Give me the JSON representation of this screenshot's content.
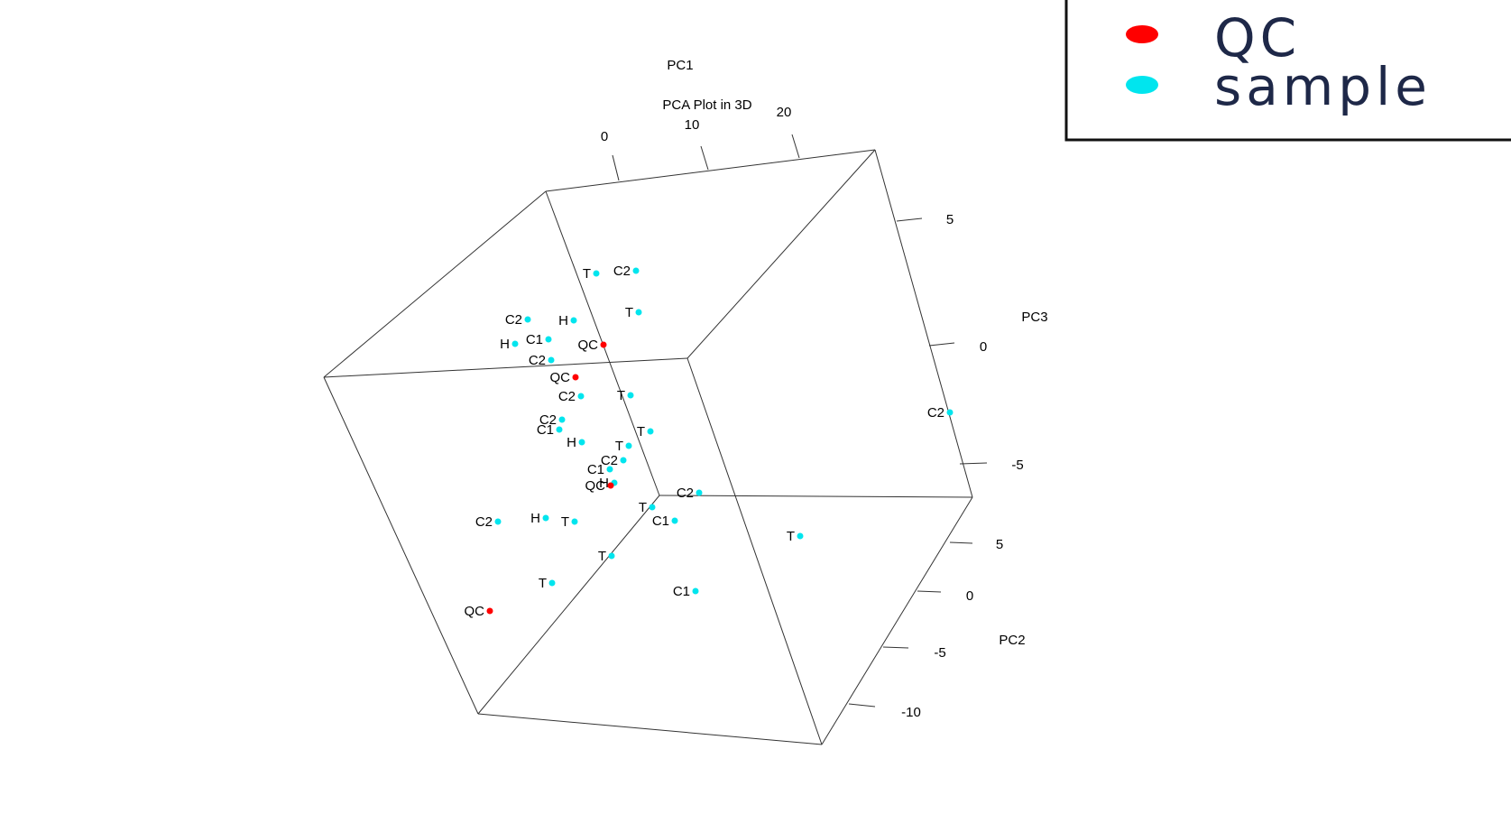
{
  "chart_data": {
    "type": "scatter",
    "title": "PCA Plot in 3D",
    "projection": "3d",
    "axes": {
      "pc1": {
        "label": "PC1",
        "ticks": [
          "0",
          "10",
          "20"
        ]
      },
      "pc2": {
        "label": "PC2",
        "ticks": [
          "5",
          "0",
          "-5",
          "-10"
        ]
      },
      "pc3": {
        "label": "PC3",
        "ticks": [
          "5",
          "0",
          "-5"
        ]
      }
    },
    "legend": {
      "position": "top-right",
      "entries": [
        {
          "name": "QC",
          "color": "#ff0000"
        },
        {
          "name": "sample",
          "color": "#00e5ee"
        }
      ]
    },
    "points": [
      {
        "label": "T",
        "group": "sample",
        "sx": 661,
        "sy": 303
      },
      {
        "label": "C2",
        "group": "sample",
        "sx": 705,
        "sy": 300
      },
      {
        "label": "T",
        "group": "sample",
        "sx": 708,
        "sy": 346
      },
      {
        "label": "C2",
        "group": "sample",
        "sx": 585,
        "sy": 354
      },
      {
        "label": "H",
        "group": "sample",
        "sx": 636,
        "sy": 355
      },
      {
        "label": "H",
        "group": "sample",
        "sx": 571,
        "sy": 381
      },
      {
        "label": "C1",
        "group": "sample",
        "sx": 608,
        "sy": 376
      },
      {
        "label": "QC",
        "group": "QC",
        "sx": 669,
        "sy": 382
      },
      {
        "label": "C2",
        "group": "sample",
        "sx": 611,
        "sy": 399
      },
      {
        "label": "QC",
        "group": "QC",
        "sx": 638,
        "sy": 418
      },
      {
        "label": "C2",
        "group": "sample",
        "sx": 644,
        "sy": 439
      },
      {
        "label": "T",
        "group": "sample",
        "sx": 699,
        "sy": 438
      },
      {
        "label": "C2",
        "group": "sample",
        "sx": 623,
        "sy": 465
      },
      {
        "label": "C1",
        "group": "sample",
        "sx": 620,
        "sy": 476
      },
      {
        "label": "T",
        "group": "sample",
        "sx": 721,
        "sy": 478
      },
      {
        "label": "C2",
        "group": "sample",
        "sx": 1053,
        "sy": 457
      },
      {
        "label": "H",
        "group": "sample",
        "sx": 645,
        "sy": 490
      },
      {
        "label": "T",
        "group": "sample",
        "sx": 697,
        "sy": 494
      },
      {
        "label": "C2",
        "group": "sample",
        "sx": 691,
        "sy": 510
      },
      {
        "label": "C1",
        "group": "sample",
        "sx": 676,
        "sy": 520
      },
      {
        "label": "H",
        "group": "sample",
        "sx": 681,
        "sy": 535
      },
      {
        "label": "QC",
        "group": "QC",
        "sx": 677,
        "sy": 538
      },
      {
        "label": "C2",
        "group": "sample",
        "sx": 775,
        "sy": 546
      },
      {
        "label": "T",
        "group": "sample",
        "sx": 723,
        "sy": 562
      },
      {
        "label": "C1",
        "group": "sample",
        "sx": 748,
        "sy": 577
      },
      {
        "label": "C2",
        "group": "sample",
        "sx": 552,
        "sy": 578
      },
      {
        "label": "H",
        "group": "sample",
        "sx": 605,
        "sy": 574
      },
      {
        "label": "T",
        "group": "sample",
        "sx": 637,
        "sy": 578
      },
      {
        "label": "T",
        "group": "sample",
        "sx": 887,
        "sy": 594
      },
      {
        "label": "T",
        "group": "sample",
        "sx": 678,
        "sy": 616
      },
      {
        "label": "T",
        "group": "sample",
        "sx": 612,
        "sy": 646
      },
      {
        "label": "C1",
        "group": "sample",
        "sx": 771,
        "sy": 655
      },
      {
        "label": "QC",
        "group": "QC",
        "sx": 543,
        "sy": 677
      }
    ]
  }
}
